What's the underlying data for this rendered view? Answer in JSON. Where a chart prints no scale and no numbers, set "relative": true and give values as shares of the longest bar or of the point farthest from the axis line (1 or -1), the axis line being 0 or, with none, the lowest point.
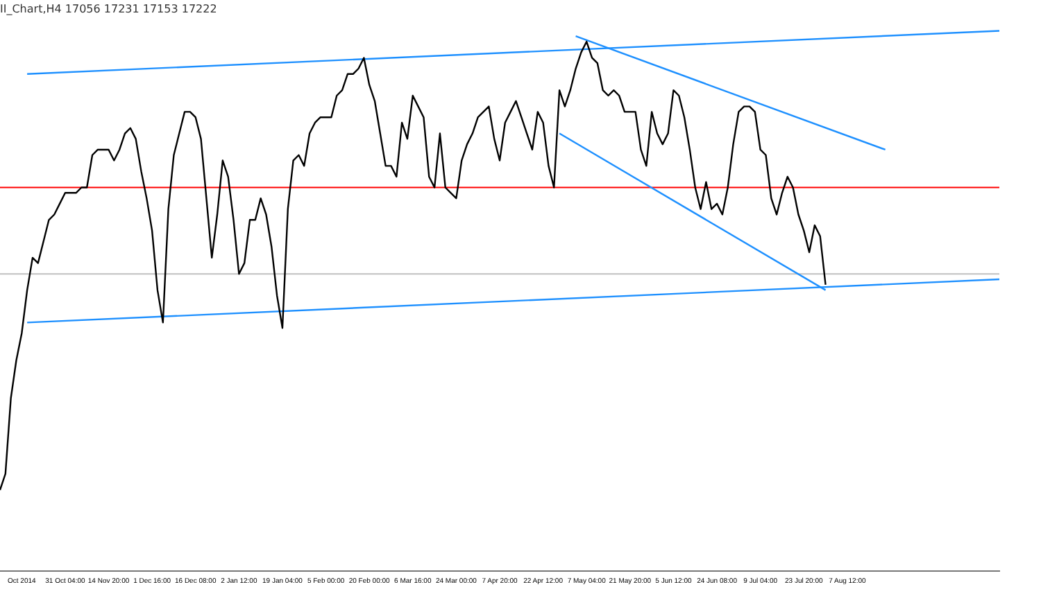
{
  "chart_data": {
    "type": "line",
    "title": "II_Chart,H4 17056 17231 17153 17222",
    "relative": true,
    "grid": false,
    "legend": false,
    "marker": "none",
    "line_style": "solid",
    "categories": [
      null,
      null,
      null,
      null,
      "Oct 2014",
      null,
      null,
      null,
      null,
      null,
      null,
      null,
      "31 Oct 04:00",
      null,
      null,
      null,
      null,
      null,
      null,
      null,
      "14 Nov 20:00",
      null,
      null,
      null,
      null,
      null,
      null,
      null,
      "1 Dec 16:00",
      null,
      null,
      null,
      null,
      null,
      null,
      null,
      "16 Dec 08:00",
      null,
      null,
      null,
      null,
      null,
      null,
      null,
      "2 Jan 12:00",
      null,
      null,
      null,
      null,
      null,
      null,
      null,
      "19 Jan 04:00",
      null,
      null,
      null,
      null,
      null,
      null,
      null,
      "5 Feb 00:00",
      null,
      null,
      null,
      null,
      null,
      null,
      null,
      "20 Feb 00:00",
      null,
      null,
      null,
      null,
      null,
      null,
      null,
      "6 Mar 16:00",
      null,
      null,
      null,
      null,
      null,
      null,
      null,
      "24 Mar 00:00",
      null,
      null,
      null,
      null,
      null,
      null,
      null,
      "7 Apr 20:00",
      null,
      null,
      null,
      null,
      null,
      null,
      null,
      "22 Apr 12:00",
      null,
      null,
      null,
      null,
      null,
      null,
      null,
      "7 May 04:00",
      null,
      null,
      null,
      null,
      null,
      null,
      null,
      "21 May 20:00",
      null,
      null,
      null,
      null,
      null,
      null,
      null,
      "5 Jun 12:00",
      null,
      null,
      null,
      null,
      null,
      null,
      null,
      "24 Jun 08:00",
      null,
      null,
      null,
      null,
      null,
      null,
      null,
      "9 Jul 04:00",
      null,
      null,
      null,
      null,
      null,
      null,
      null,
      "23 Jul 20:00",
      null,
      null,
      null,
      null,
      null,
      null,
      null,
      "7 Aug 12:00",
      null,
      null,
      null,
      null,
      null,
      null,
      null,
      null,
      null,
      null,
      null,
      null,
      null,
      null,
      null,
      null,
      null,
      null,
      null,
      null,
      null,
      null,
      null,
      null,
      null,
      null,
      null,
      null
    ],
    "series": [
      {
        "color": "#000000",
        "values": [
          0.15,
          0.18,
          0.32,
          0.39,
          0.44,
          0.52,
          0.58,
          0.57,
          0.61,
          0.65,
          0.66,
          0.68,
          0.7,
          0.7,
          0.7,
          0.71,
          0.71,
          0.77,
          0.78,
          0.78,
          0.78,
          0.76,
          0.78,
          0.81,
          0.82,
          0.8,
          0.74,
          0.69,
          0.63,
          0.52,
          0.46,
          0.67,
          0.77,
          0.81,
          0.85,
          0.85,
          0.84,
          0.8,
          0.69,
          0.58,
          0.66,
          0.76,
          0.73,
          0.65,
          0.55,
          0.57,
          0.65,
          0.65,
          0.69,
          0.66,
          0.6,
          0.51,
          0.45,
          0.67,
          0.76,
          0.77,
          0.75,
          0.81,
          0.83,
          0.84,
          0.84,
          0.84,
          0.88,
          0.89,
          0.92,
          0.92,
          0.93,
          0.95,
          0.9,
          0.87,
          0.81,
          0.75,
          0.75,
          0.73,
          0.83,
          0.8,
          0.88,
          0.86,
          0.84,
          0.73,
          0.71,
          0.81,
          0.71,
          0.7,
          0.69,
          0.76,
          0.79,
          0.81,
          0.84,
          0.85,
          0.86,
          0.8,
          0.76,
          0.83,
          0.85,
          0.87,
          0.84,
          0.81,
          0.78,
          0.85,
          0.83,
          0.75,
          0.71,
          0.89,
          0.86,
          0.89,
          0.93,
          0.96,
          0.98,
          0.95,
          0.94,
          0.89,
          0.88,
          0.89,
          0.88,
          0.85,
          0.85,
          0.85,
          0.78,
          0.75,
          0.85,
          0.81,
          0.79,
          0.81,
          0.89,
          0.88,
          0.84,
          0.78,
          0.71,
          0.67,
          0.72,
          0.67,
          0.68,
          0.66,
          0.71,
          0.79,
          0.85,
          0.86,
          0.86,
          0.85,
          0.78,
          0.77,
          0.69,
          0.66,
          0.7,
          0.73,
          0.71,
          0.66,
          0.63,
          0.59,
          0.64,
          0.62,
          0.53,
          null,
          null,
          null,
          null,
          null,
          null,
          null,
          null,
          null,
          null,
          null,
          null,
          null,
          null,
          null,
          null,
          null,
          null,
          null,
          null,
          null,
          null,
          null,
          null,
          null,
          null,
          null,
          null,
          null,
          null,
          null,
          null
        ]
      },
      {
        "type": "line",
        "color": "#1e90ff",
        "values": [
          null,
          null,
          null,
          null,
          null,
          0.92,
          null,
          null,
          null,
          null,
          null,
          null,
          null,
          null,
          null,
          null,
          null,
          null,
          null,
          null,
          null,
          null,
          null,
          null,
          null,
          null,
          null,
          null,
          null,
          null,
          null,
          null,
          null,
          null,
          null,
          null,
          null,
          null,
          null,
          null,
          null,
          null,
          null,
          null,
          null,
          null,
          null,
          null,
          null,
          null,
          null,
          null,
          null,
          null,
          null,
          null,
          null,
          null,
          null,
          null,
          null,
          null,
          null,
          null,
          null,
          null,
          null,
          null,
          null,
          null,
          null,
          null,
          null,
          null,
          null,
          null,
          null,
          null,
          null,
          null,
          null,
          null,
          null,
          null,
          null,
          null,
          null,
          null,
          null,
          null,
          null,
          null,
          null,
          null,
          null,
          null,
          null,
          null,
          null,
          null,
          null,
          null,
          null,
          null,
          null,
          null,
          null,
          null,
          null,
          null,
          null,
          null,
          null,
          null,
          null,
          null,
          null,
          null,
          null,
          null,
          null,
          null,
          null,
          null,
          null,
          null,
          null,
          null,
          null,
          null,
          null,
          null,
          null,
          null,
          null,
          null,
          null,
          null,
          null,
          null,
          null,
          null,
          null,
          null,
          null,
          null,
          null,
          null,
          null,
          null,
          null,
          null,
          null,
          null,
          null,
          null,
          null,
          null,
          null,
          null,
          null,
          null,
          null,
          null,
          null,
          null,
          null,
          null,
          null,
          null,
          null,
          null,
          null,
          null,
          null,
          null,
          null,
          null,
          null,
          null,
          null,
          null,
          null,
          null,
          1.0
        ]
      },
      {
        "type": "line",
        "color": "#1e90ff",
        "values": [
          null,
          null,
          null,
          null,
          null,
          0.46,
          null,
          null,
          null,
          null,
          null,
          null,
          null,
          null,
          null,
          null,
          null,
          null,
          null,
          null,
          null,
          null,
          null,
          null,
          null,
          null,
          null,
          null,
          null,
          null,
          null,
          null,
          null,
          null,
          null,
          null,
          null,
          null,
          null,
          null,
          null,
          null,
          null,
          null,
          null,
          null,
          null,
          null,
          null,
          null,
          null,
          null,
          null,
          null,
          null,
          null,
          null,
          null,
          null,
          null,
          null,
          null,
          null,
          null,
          null,
          null,
          null,
          null,
          null,
          null,
          null,
          null,
          null,
          null,
          null,
          null,
          null,
          null,
          null,
          null,
          null,
          null,
          null,
          null,
          null,
          null,
          null,
          null,
          null,
          null,
          null,
          null,
          null,
          null,
          null,
          null,
          null,
          null,
          null,
          null,
          null,
          null,
          null,
          null,
          null,
          null,
          null,
          null,
          null,
          null,
          null,
          null,
          null,
          null,
          null,
          null,
          null,
          null,
          null,
          null,
          null,
          null,
          null,
          null,
          null,
          null,
          null,
          null,
          null,
          null,
          null,
          null,
          null,
          null,
          null,
          null,
          null,
          null,
          null,
          null,
          null,
          null,
          null,
          null,
          null,
          null,
          null,
          null,
          null,
          null,
          null,
          null,
          null,
          null,
          null,
          null,
          null,
          null,
          null,
          null,
          null,
          null,
          null,
          null,
          null,
          null,
          null,
          null,
          null,
          null,
          null,
          null,
          null,
          null,
          null,
          null,
          null,
          null,
          null,
          null,
          null,
          null,
          null,
          null,
          0.54
        ]
      },
      {
        "type": "line",
        "color": "#1e90ff",
        "values": [
          null,
          null,
          null,
          null,
          null,
          null,
          null,
          null,
          null,
          null,
          null,
          null,
          null,
          null,
          null,
          null,
          null,
          null,
          null,
          null,
          null,
          null,
          null,
          null,
          null,
          null,
          null,
          null,
          null,
          null,
          null,
          null,
          null,
          null,
          null,
          null,
          null,
          null,
          null,
          null,
          null,
          null,
          null,
          null,
          null,
          null,
          null,
          null,
          null,
          null,
          null,
          null,
          null,
          null,
          null,
          null,
          null,
          null,
          null,
          null,
          null,
          null,
          null,
          null,
          null,
          null,
          null,
          null,
          null,
          null,
          null,
          null,
          null,
          null,
          null,
          null,
          null,
          null,
          null,
          null,
          null,
          null,
          null,
          null,
          null,
          null,
          null,
          null,
          null,
          null,
          null,
          null,
          null,
          null,
          null,
          null,
          null,
          null,
          null,
          null,
          null,
          null,
          null,
          null,
          null,
          null,
          0.99,
          null,
          null,
          null,
          null,
          null,
          null,
          null,
          null,
          null,
          null,
          null,
          null,
          null,
          null,
          null,
          null,
          null,
          null,
          null,
          null,
          null,
          null,
          null,
          null,
          null,
          null,
          null,
          null,
          null,
          null,
          null,
          null,
          null,
          null,
          null,
          null,
          null,
          null,
          null,
          null,
          null,
          null,
          null,
          null,
          null,
          null,
          null,
          null,
          null,
          null,
          null,
          null,
          null,
          null,
          null,
          null,
          0.78,
          null,
          null,
          null,
          null,
          null,
          null,
          null,
          null,
          null,
          null,
          null,
          null,
          null,
          null,
          null,
          null,
          null,
          null,
          null,
          null,
          null
        ]
      },
      {
        "type": "line",
        "color": "#1e90ff",
        "values": [
          null,
          null,
          null,
          null,
          null,
          null,
          null,
          null,
          null,
          null,
          null,
          null,
          null,
          null,
          null,
          null,
          null,
          null,
          null,
          null,
          null,
          null,
          null,
          null,
          null,
          null,
          null,
          null,
          null,
          null,
          null,
          null,
          null,
          null,
          null,
          null,
          null,
          null,
          null,
          null,
          null,
          null,
          null,
          null,
          null,
          null,
          null,
          null,
          null,
          null,
          null,
          null,
          null,
          null,
          null,
          null,
          null,
          null,
          null,
          null,
          null,
          null,
          null,
          null,
          null,
          null,
          null,
          null,
          null,
          null,
          null,
          null,
          null,
          null,
          null,
          null,
          null,
          null,
          null,
          null,
          null,
          null,
          null,
          null,
          null,
          null,
          null,
          null,
          null,
          null,
          null,
          null,
          null,
          null,
          null,
          null,
          null,
          null,
          null,
          null,
          null,
          null,
          null,
          0.81,
          null,
          null,
          null,
          null,
          null,
          null,
          null,
          null,
          null,
          null,
          null,
          null,
          null,
          null,
          null,
          null,
          null,
          null,
          null,
          null,
          null,
          null,
          null,
          null,
          null,
          null,
          null,
          null,
          null,
          null,
          null,
          null,
          null,
          null,
          null,
          null,
          null,
          null,
          null,
          null,
          null,
          null,
          null,
          null,
          null,
          null,
          null,
          null,
          0.52,
          null,
          null,
          null,
          null,
          null,
          null,
          null,
          null,
          null,
          null,
          null,
          null,
          null,
          null,
          null,
          null,
          null,
          null,
          null,
          null,
          null,
          null,
          null,
          null,
          null,
          null,
          null,
          null,
          null,
          null,
          null,
          null
        ]
      }
    ],
    "ref_lines": [
      {
        "axis": "y",
        "value": 0.71,
        "color": "#ff0000"
      },
      {
        "axis": "y",
        "value": 0.55,
        "color": "#c0c0c0"
      }
    ]
  }
}
